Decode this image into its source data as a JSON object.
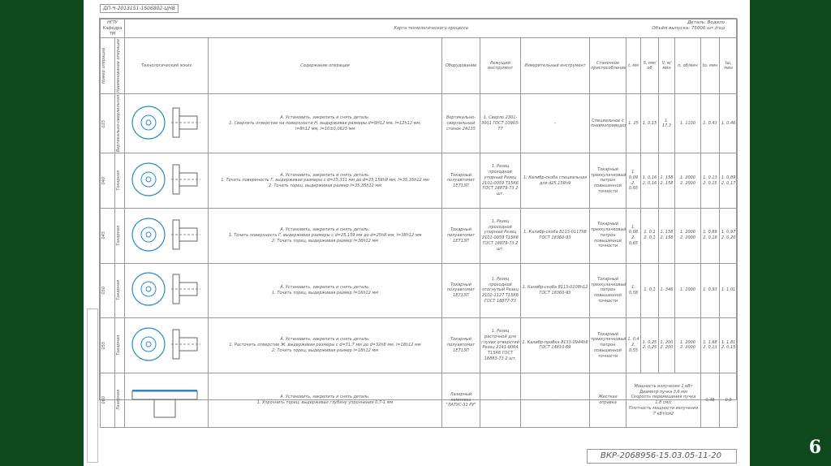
{
  "doc_code": "ДП-Ч-2013151-1506802-ЦНВ",
  "card_label": "Карта технологического процесса",
  "sheet_label": "НГТУ\nКафедра ТМ",
  "detail": "Деталь: Водило",
  "volume": "Объём выпуска: 75000 шт./год",
  "headers": {
    "op_num": "Номер операции",
    "op_name": "Наименование операции",
    "sketch": "Технологический эскиз",
    "content": "Содержание операции",
    "equipment": "Оборудование",
    "cutting": "Режущий инструмент",
    "measuring": "Измерительный инструмент",
    "fixture": "Станочное приспособление",
    "t": "t, мм",
    "S": "S, мм/об",
    "V": "V, м/мин",
    "n": "n, об/мин",
    "to": "tо, мин",
    "tsh": "tш, мин"
  },
  "rows": [
    {
      "num": "035",
      "name": "Вертикально-сверлильная",
      "content": "А. Установить, закрепить и снять деталь.\n1. Сверлить отверстие на поверхности Н, выдерживая размеры d=9H12 мм, l=12h12 мм,\nl=8h12 мм, l=10±0,0625 мм",
      "equipment": "Вертикально-сверлильный станок 2А135",
      "cutting": "1. Сверло 2301-3001 ГОСТ 10903-77",
      "measuring": "–",
      "fixture": "Специальное с пневмоприводом",
      "t": "1. 25",
      "S": "1. 0,15",
      "V": "1. 17,3",
      "n": "1. 1100",
      "to": "1. 0,43",
      "tsh": "1. 0,46"
    },
    {
      "num": "040",
      "name": "Токарная",
      "content": "А. Установить, закрепить и снять деталь.\n1. Точить поверхность Г, выдерживая размеры с d=25,331 мм до d=25,159h9 мм, l=35,35h12 мм\n2. Точить торец, выдерживая размер l=35,35h12 мм",
      "equipment": "Токарный полуавтомат 1Е713П",
      "cutting": "1. Резец проходной упорный Резец 2101-0059 Т15К6 ГОСТ 18879-73 2 шт.",
      "measuring": "1. Калибр-скоба специальная для d25,159h9",
      "fixture": "Токарный трехкулачковый патрон повышенной точности",
      "t": "1. 0,09\n2. 0,65",
      "S": "1. 0,16\n2. 0,16",
      "V": "1. 158\n2. 158",
      "n": "1. 2000\n2. 2000",
      "to": "1. 0,13\n2. 0,15",
      "tsh": "1. 0,89\n2. 0,17"
    },
    {
      "num": "045",
      "name": "Токарная",
      "content": "А. Установить, закрепить и снять деталь.\n1. Точить поверхность Г, выдерживая размеры с d=25,159 мм до d=25h8 мм, l=38h12 мм\n2. Точить торец, выдерживая размер l=38h12 мм",
      "equipment": "Токарный полуавтомат 1Е713П",
      "cutting": "1. Резец проходной упорный Резец 2101-0059 Т15К6 ГОСТ 18879-73 2 шт.",
      "measuring": "1. Калибр-скоба 8113-0117h8 ГОСТ 18360-93",
      "fixture": "Токарный трехкулачковый патрон повышенной точности",
      "t": "1. 0,08\n2. 0,65",
      "S": "1. 0,1\n2. 0,1",
      "V": "1. 158\n2. 158",
      "n": "1. 2000\n2. 2000",
      "to": "1. 0,89\n2. 0,18",
      "tsh": "1. 0,97\n2. 0,20"
    },
    {
      "num": "050",
      "name": "Токарная",
      "content": "А. Установить, закрепить и снять деталь.\n1. Точить торец, выдерживая размер l=16h12 мм",
      "equipment": "Токарный полуавтомат 1Е713П",
      "cutting": "1. Резец проходной отогнутый Резец 2102-1127 Т15К6 ГОСТ 18877-73",
      "measuring": "1. Калибр-скоба 8113-0108h12 ГОСТ 18360-93",
      "fixture": "Токарный трехкулачковый патрон повышенной точности",
      "t": "1. 0,58",
      "S": "1. 0,1",
      "V": "1. 346",
      "n": "1. 1000",
      "to": "1. 0,93",
      "tsh": "1. 1,01"
    },
    {
      "num": "055",
      "name": "Токарная",
      "content": "А. Установить, закрепить и снять деталь.\n1. Расточить отверстие Ж, выдерживая размеры с d=31,7 мм до d=32h8 мм, l=18h12 мм\n2. Точить торец, выдерживая размер l=18h12 мм",
      "equipment": "Токарный полуавтомат 1Е713П",
      "cutting": "1. Резец расточной для глухих отверстий Резец 2141-0064 Т15К6 ГОСТ 18883-73 2 шт.",
      "measuring": "1. Калибр-пробка 8133-0944h8 ГОСТ 14810-69",
      "fixture": "Токарный трехкулачковый патрон повышенной точности",
      "t": "1. 0,4\n2. 0,55",
      "S": "1. 0,25\n2. 0,25",
      "V": "1. 200\n2. 200",
      "n": "1. 2000\n2. 2000",
      "to": "1. 1,68\n2. 0,13",
      "tsh": "1. 1,81\n2. 0,15"
    },
    {
      "num": "060",
      "name": "Лазерная",
      "content": "А. Установить, закрепить и снять деталь.\n1. Упрочнить торец, выдерживая глубину упрочнения 0,7-1 мм",
      "equipment": "Лазерный комплекс \"ЛАТУС-31 РУ\"",
      "cutting": "–",
      "measuring": "–",
      "fixture": "Жесткая оправка",
      "params": "Мощность излучения 1 кВт\nДиаметр пучка 3,6 мм\nСкорость перемещения пучка 1,8 см/с\nПлотность мощности излучения 7 кВт/см2",
      "to": "0,48",
      "tsh": "0,9"
    }
  ],
  "title_block": "ВКР-2068956-15.03.05-11-20",
  "page_number": "6",
  "colors": {
    "background": "#0f4a1c",
    "sketch": "#2a8ac9"
  }
}
